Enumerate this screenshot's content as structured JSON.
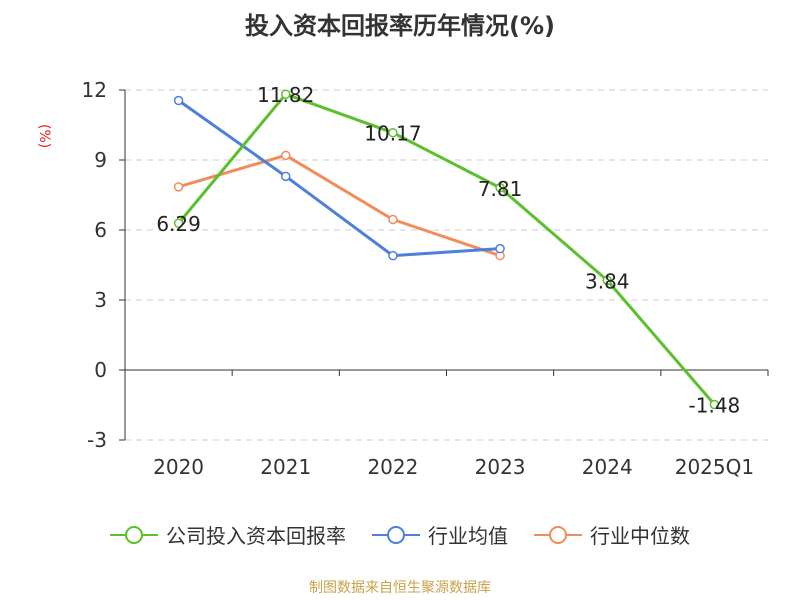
{
  "title": "投入资本回报率历年情况(%)",
  "unit_label": "(%)",
  "footer": "制图数据来自恒生聚源数据库",
  "colors": {
    "company": "#5cc02c",
    "industry_avg": "#4e7fdb",
    "industry_median": "#f28c5a",
    "grid": "#cccccc",
    "axis": "#333333",
    "text": "#333333",
    "unit": "#e02020",
    "footer": "#c9a24a"
  },
  "legend": [
    {
      "label": "公司投入资本回报率",
      "color": "#5cc02c"
    },
    {
      "label": "行业均值",
      "color": "#4e7fdb"
    },
    {
      "label": "行业中位数",
      "color": "#f28c5a"
    }
  ],
  "chart_data": {
    "type": "line",
    "title": "投入资本回报率历年情况(%)",
    "ylabel": "(%)",
    "categories": [
      "2020",
      "2021",
      "2022",
      "2023",
      "2024",
      "2025Q1"
    ],
    "y_ticks": [
      "-3",
      "0",
      "3",
      "6",
      "9",
      "12"
    ],
    "ylim": [
      -3,
      12
    ],
    "grid": true,
    "legend_position": "bottom",
    "series": [
      {
        "name": "公司投入资本回报率",
        "values": [
          6.29,
          11.82,
          10.17,
          7.81,
          3.84,
          -1.48
        ],
        "labels": [
          "6.29",
          "11.82",
          "10.17",
          "7.81",
          "3.84",
          "-1.48"
        ]
      },
      {
        "name": "行业均值",
        "values": [
          11.55,
          8.3,
          4.9,
          5.2,
          null,
          null
        ]
      },
      {
        "name": "行业中位数",
        "values": [
          7.85,
          9.2,
          6.45,
          4.9,
          null,
          null
        ]
      }
    ]
  }
}
